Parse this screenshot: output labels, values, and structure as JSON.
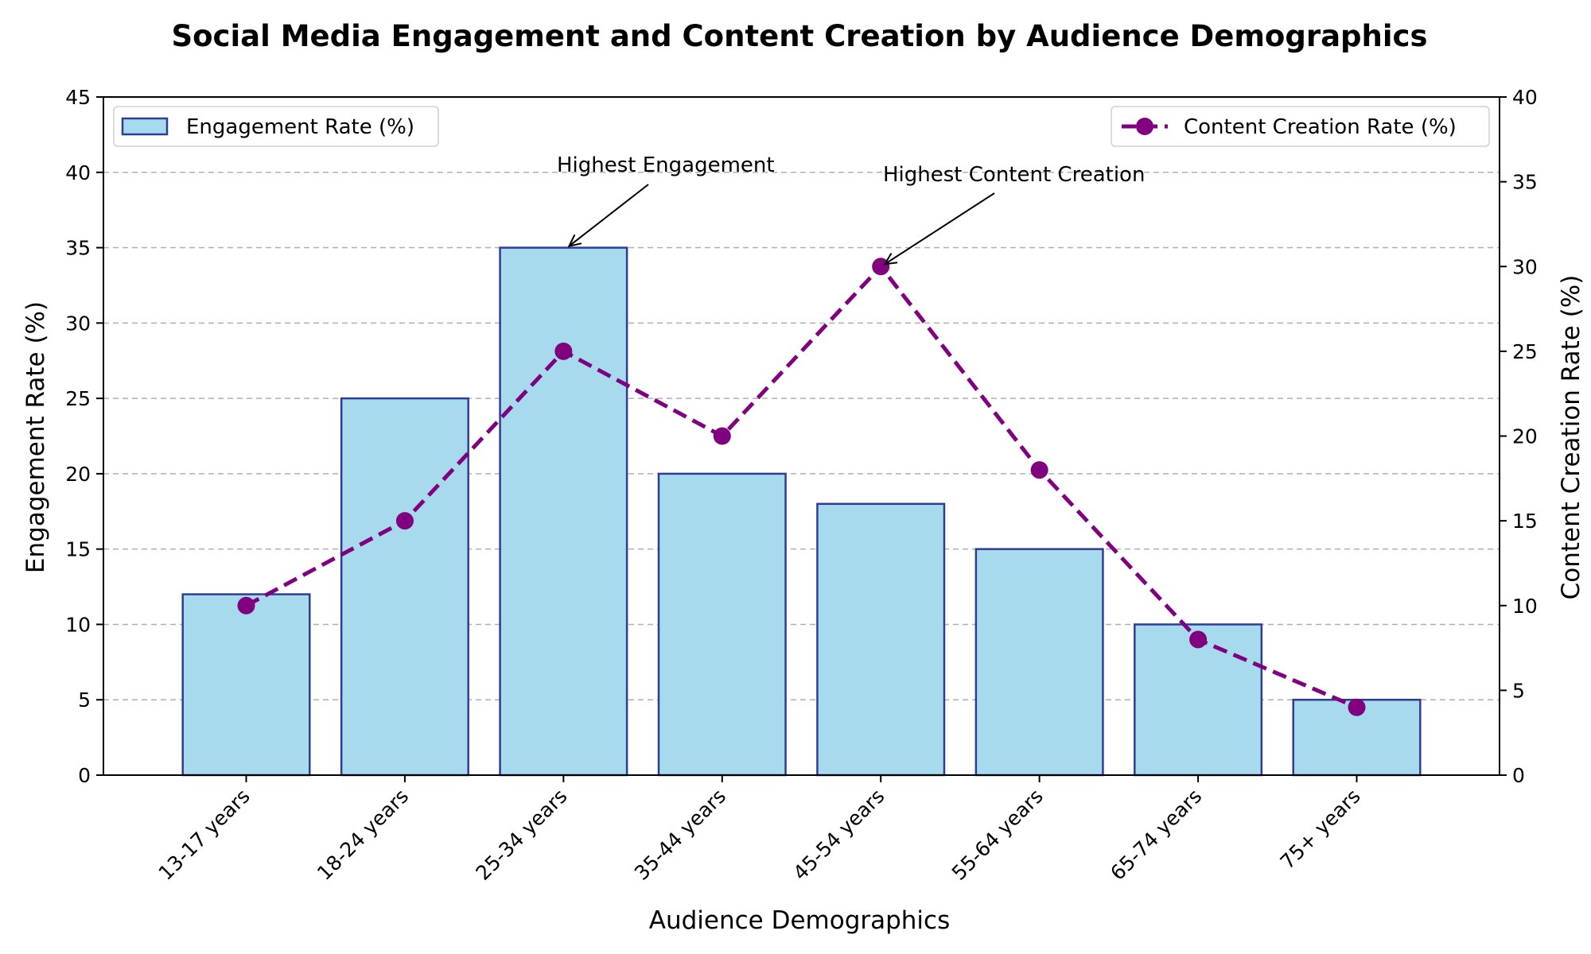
{
  "chart_data": {
    "type": "bar",
    "title": "Social Media Engagement and Content Creation by Audience Demographics",
    "xlabel": "Audience Demographics",
    "ylabel": "Engagement Rate (%)",
    "y2label": "Content Creation Rate (%)",
    "categories": [
      "13-17 years",
      "18-24 years",
      "25-34 years",
      "35-44 years",
      "45-54 years",
      "55-64 years",
      "65-74 years",
      "75+ years"
    ],
    "ylim": [
      0,
      45
    ],
    "y2lim": [
      0,
      40
    ],
    "yticks": [
      0,
      5,
      10,
      15,
      20,
      25,
      30,
      35,
      40,
      45
    ],
    "y2ticks": [
      0,
      5,
      10,
      15,
      20,
      25,
      30,
      35,
      40
    ],
    "grid": true,
    "series": [
      {
        "name": "Engagement Rate (%)",
        "type": "bar",
        "axis": "left",
        "values": [
          12,
          25,
          35,
          20,
          18,
          15,
          10,
          5
        ],
        "color": "#a8daee",
        "edge_color": "#2e3c96"
      },
      {
        "name": "Content Creation Rate (%)",
        "type": "line",
        "axis": "right",
        "values": [
          10,
          15,
          25,
          20,
          30,
          18,
          8,
          4
        ],
        "color": "#800080",
        "line_style": "dashed",
        "marker": "circle"
      }
    ],
    "legends": [
      {
        "series": 0,
        "placement": "upper-left"
      },
      {
        "series": 1,
        "placement": "upper-right"
      }
    ],
    "annotations": [
      {
        "text": "Highest Engagement",
        "target_category": "25-34 years",
        "target_value": 35,
        "axis": "left"
      },
      {
        "text": "Highest Content Creation",
        "target_category": "45-54 years",
        "target_value": 30,
        "axis": "right"
      }
    ]
  }
}
